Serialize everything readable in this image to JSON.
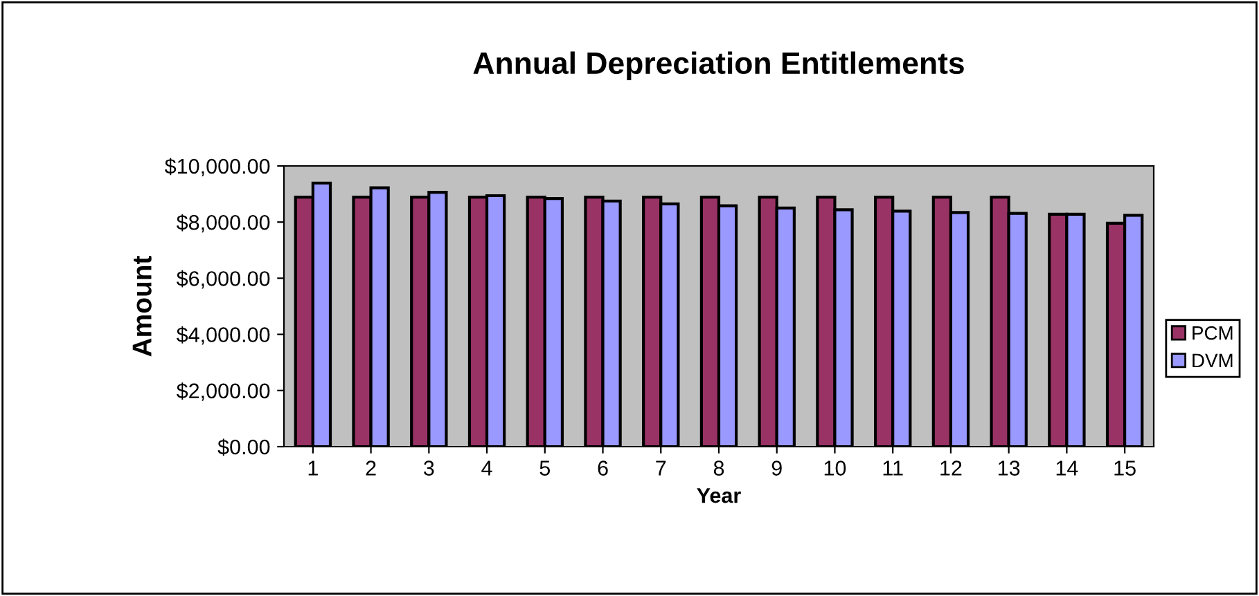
{
  "chart_data": {
    "type": "bar",
    "title": "Annual Depreciation Entitlements",
    "xlabel": "Year",
    "ylabel": "Amount",
    "categories": [
      "1",
      "2",
      "3",
      "4",
      "5",
      "6",
      "7",
      "8",
      "9",
      "10",
      "11",
      "12",
      "13",
      "14",
      "15"
    ],
    "series": [
      {
        "name": "PCM",
        "color": "#993366",
        "values": [
          8890,
          8890,
          8890,
          8890,
          8890,
          8890,
          8890,
          8890,
          8890,
          8890,
          8890,
          8890,
          8890,
          8280,
          7960
        ]
      },
      {
        "name": "DVM",
        "color": "#9999ff",
        "values": [
          9390,
          9220,
          9060,
          8940,
          8840,
          8750,
          8650,
          8580,
          8500,
          8440,
          8390,
          8340,
          8310,
          8280,
          8240
        ]
      }
    ],
    "ylim": [
      0,
      10000
    ],
    "yticks": [
      {
        "value": 0,
        "label": "$0.00"
      },
      {
        "value": 2000,
        "label": "$2,000.00"
      },
      {
        "value": 4000,
        "label": "$4,000.00"
      },
      {
        "value": 6000,
        "label": "$6,000.00"
      },
      {
        "value": 8000,
        "label": "$8,000.00"
      },
      {
        "value": 10000,
        "label": "$10,000.00"
      }
    ],
    "grid": false,
    "legend": "right"
  }
}
